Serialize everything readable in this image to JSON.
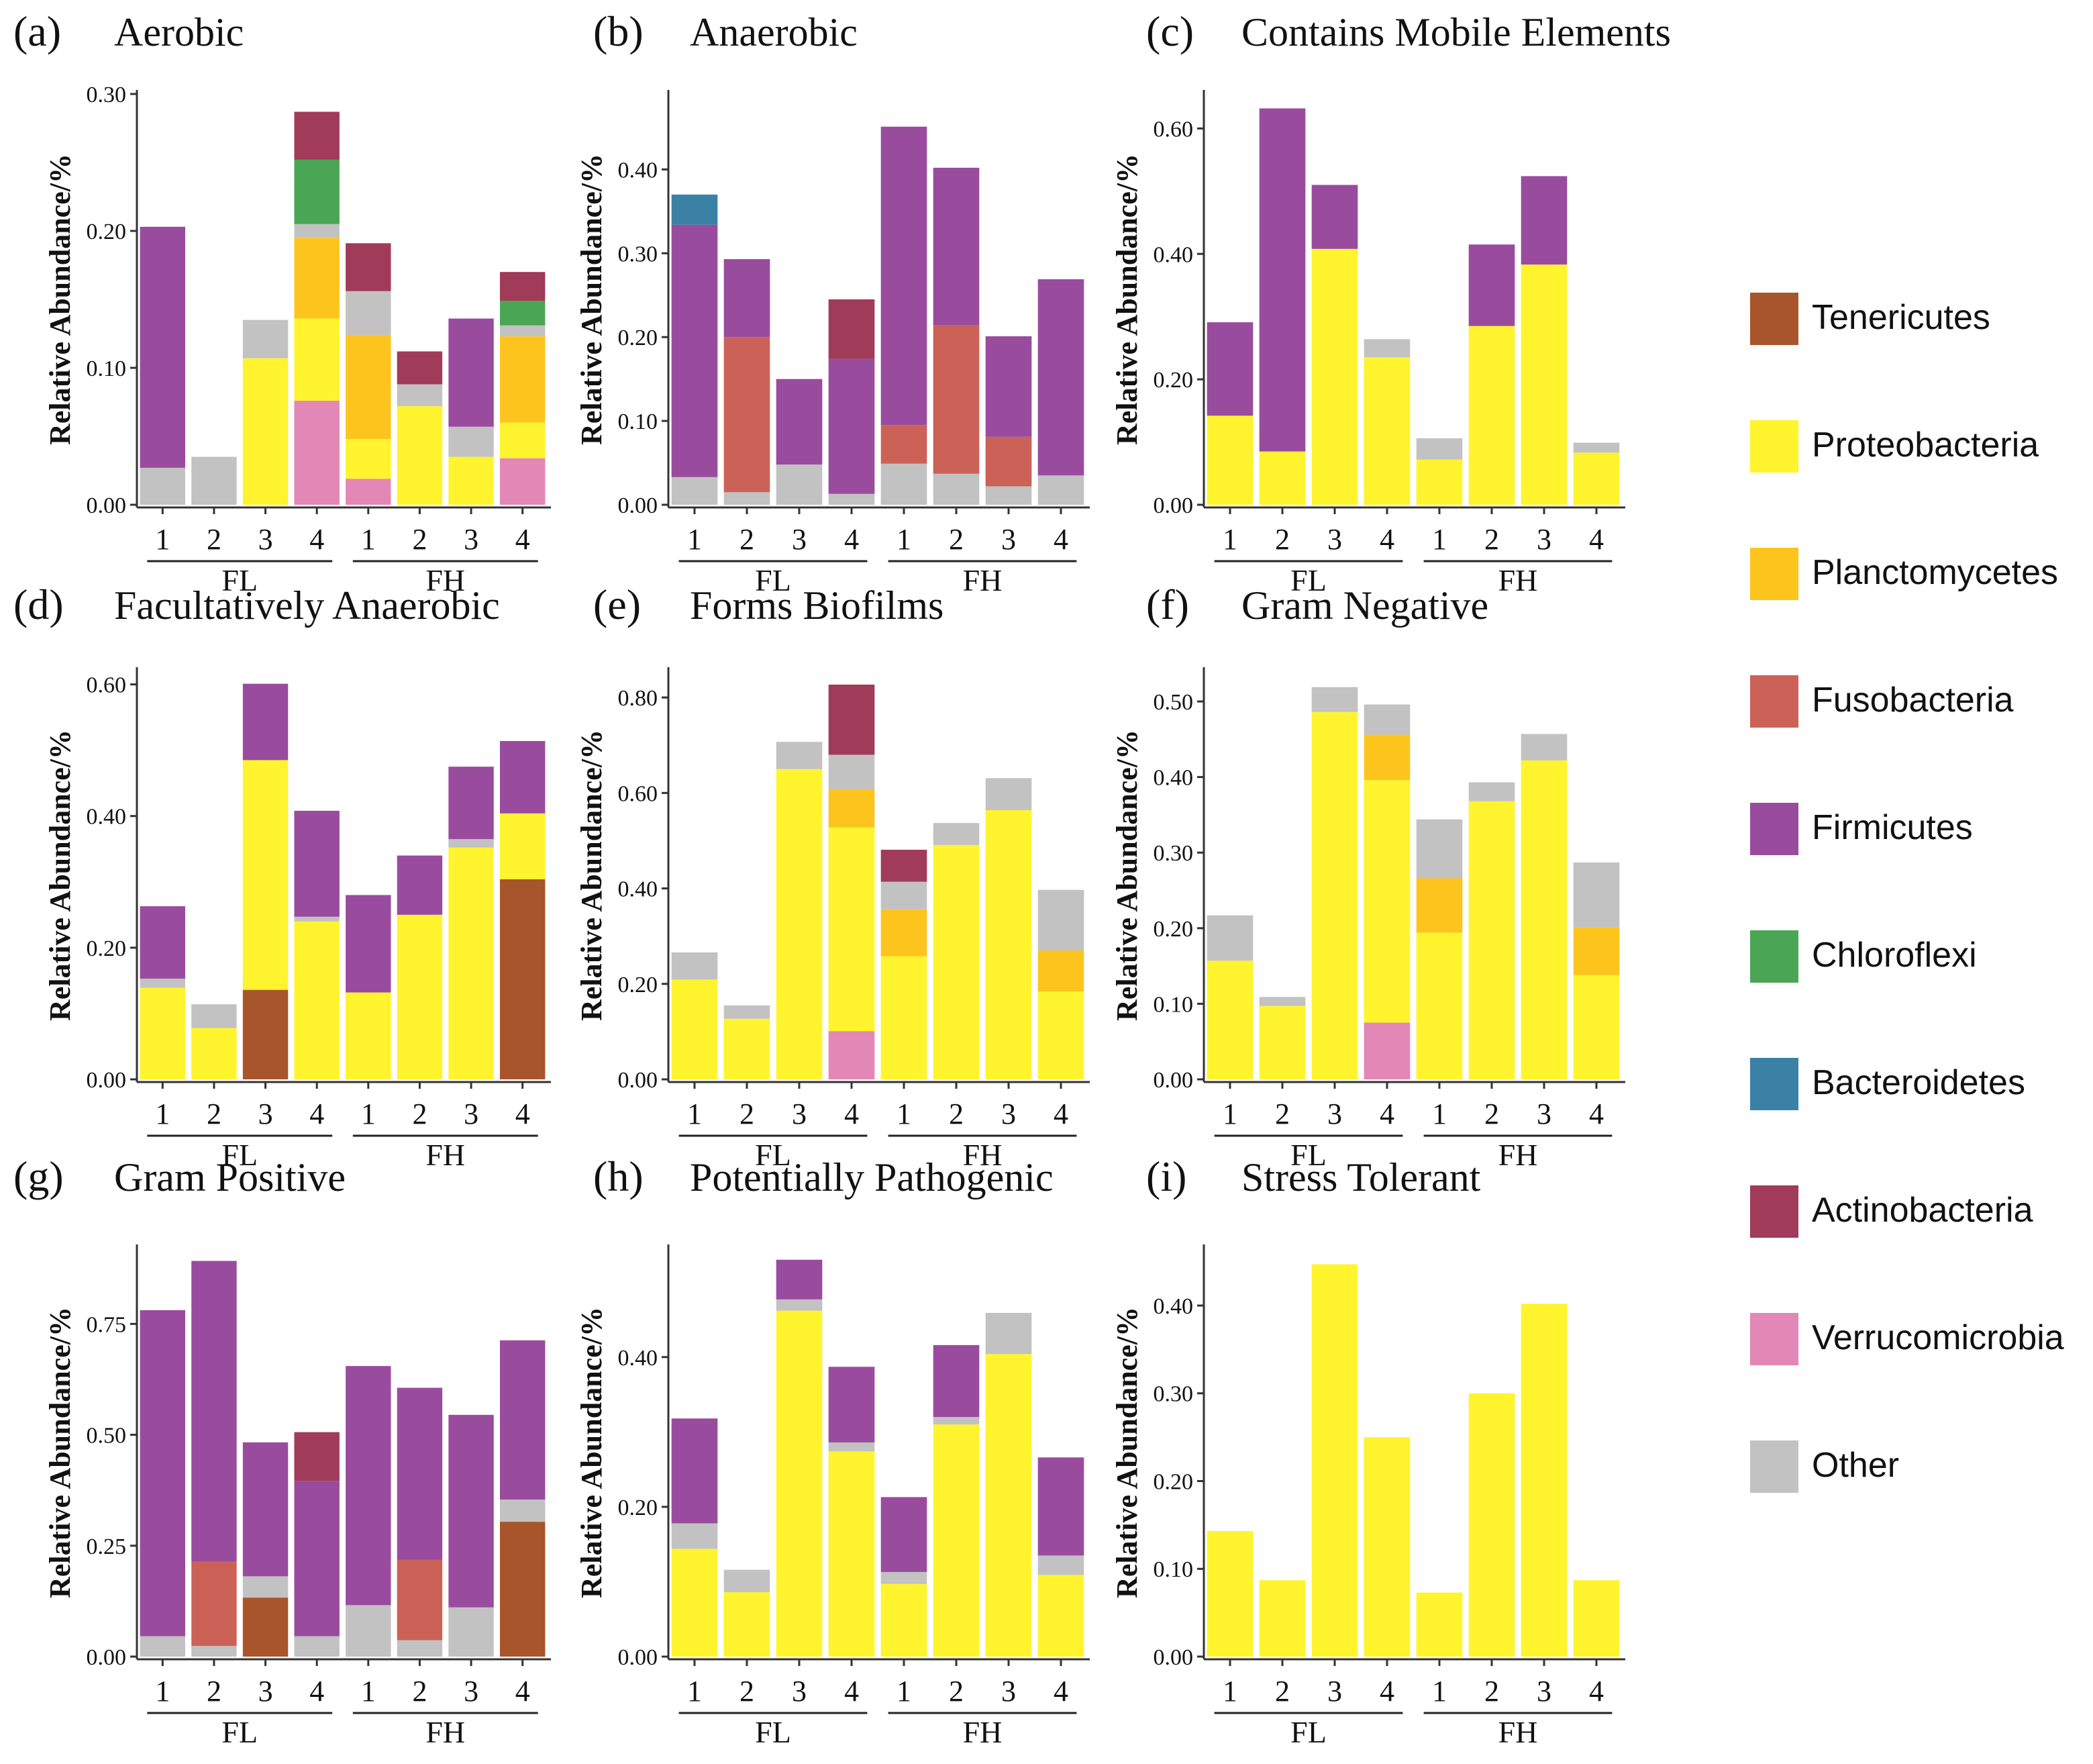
{
  "colors": {
    "Tenericutes": "#a8552b",
    "Proteobacteria": "#fff42d",
    "Planctomycetes": "#fec41e",
    "Fusobacteria": "#cc6257",
    "Firmicutes": "#994c9e",
    "Chloroflexi": "#4aa655",
    "Bacteroidetes": "#3a81a5",
    "Actinobacteria": "#a13b5a",
    "Verrucomicrobia": "#e287b6",
    "Other": "#c2c2c2"
  },
  "legend": {
    "items": [
      "Tenericutes",
      "Proteobacteria",
      "Planctomycetes",
      "Fusobacteria",
      "Firmicutes",
      "Chloroflexi",
      "Bacteroidetes",
      "Actinobacteria",
      "Verrucomicrobia",
      "Other"
    ]
  },
  "chart_data": [
    {
      "panel": "(a)",
      "title": "Aerobic",
      "type": "bar",
      "stacked": true,
      "ylabel": "Relative Abundance/%",
      "ylim": [
        0,
        0.3
      ],
      "yticks": [
        0,
        0.1,
        0.2,
        0.3
      ],
      "yticklabels": [
        "0.00",
        "0.10",
        "0.20",
        "0.30"
      ],
      "categories": [
        "1",
        "2",
        "3",
        "4",
        "1",
        "2",
        "3",
        "4"
      ],
      "groups": [
        "FL",
        "FH"
      ],
      "series": [
        {
          "name": "Other",
          "values": [
            0.027,
            0.035,
            0,
            0,
            0,
            0,
            0,
            0
          ]
        },
        {
          "name": "Verrucomicrobia",
          "values": [
            0,
            0,
            0,
            0.076,
            0.019,
            0,
            0,
            0.034
          ]
        },
        {
          "name": "Proteobacteria",
          "values": [
            0,
            0,
            0.107,
            0.06,
            0.029,
            0.072,
            0.035,
            0.026
          ]
        },
        {
          "name": "Planctomycetes",
          "values": [
            0,
            0,
            0,
            0.059,
            0.076,
            0,
            0,
            0.063
          ]
        },
        {
          "name": "Other",
          "values": [
            0,
            0,
            0.028,
            0.01,
            0.032,
            0.016,
            0.022,
            0.008
          ]
        },
        {
          "name": "Firmicutes",
          "values": [
            0.176,
            0,
            0,
            0,
            0,
            0,
            0.079,
            0
          ]
        },
        {
          "name": "Chloroflexi",
          "values": [
            0,
            0,
            0,
            0.047,
            0,
            0,
            0,
            0.018
          ]
        },
        {
          "name": "Actinobacteria",
          "values": [
            0,
            0,
            0,
            0.035,
            0.035,
            0.024,
            0,
            0.021
          ]
        }
      ]
    },
    {
      "panel": "(b)",
      "title": "Anaerobic",
      "type": "bar",
      "stacked": true,
      "ylabel": "Relative Abundance/%",
      "ylim": [
        0,
        0.49
      ],
      "yticks": [
        0,
        0.1,
        0.2,
        0.3,
        0.4
      ],
      "yticklabels": [
        "0.00",
        "0.10",
        "0.20",
        "0.30",
        "0.40"
      ],
      "categories": [
        "1",
        "2",
        "3",
        "4",
        "1",
        "2",
        "3",
        "4"
      ],
      "groups": [
        "FL",
        "FH"
      ],
      "series": [
        {
          "name": "Other",
          "values": [
            0.033,
            0.015,
            0.048,
            0.013,
            0.049,
            0.037,
            0.022,
            0.035
          ]
        },
        {
          "name": "Fusobacteria",
          "values": [
            0,
            0.185,
            0,
            0,
            0.046,
            0.177,
            0.059,
            0
          ]
        },
        {
          "name": "Firmicutes",
          "values": [
            0.301,
            0.093,
            0.102,
            0.161,
            0.356,
            0.188,
            0.12,
            0.234
          ]
        },
        {
          "name": "Actinobacteria",
          "values": [
            0,
            0,
            0,
            0.071,
            0,
            0,
            0,
            0
          ]
        },
        {
          "name": "Bacteroidetes",
          "values": [
            0.036,
            0,
            0,
            0,
            0,
            0,
            0,
            0
          ]
        }
      ]
    },
    {
      "panel": "(c)",
      "title": "Contains Mobile Elements",
      "type": "bar",
      "stacked": true,
      "ylabel": "Relative Abundance/%",
      "ylim": [
        0,
        0.655
      ],
      "yticks": [
        0,
        0.2,
        0.4,
        0.6
      ],
      "yticklabels": [
        "0.00",
        "0.20",
        "0.40",
        "0.60"
      ],
      "categories": [
        "1",
        "2",
        "3",
        "4",
        "1",
        "2",
        "3",
        "4"
      ],
      "groups": [
        "FL",
        "FH"
      ],
      "series": [
        {
          "name": "Proteobacteria",
          "values": [
            0.142,
            0.085,
            0.408,
            0.235,
            0.072,
            0.285,
            0.383,
            0.083
          ]
        },
        {
          "name": "Other",
          "values": [
            0,
            0,
            0,
            0.029,
            0.034,
            0,
            0,
            0.016
          ]
        },
        {
          "name": "Firmicutes",
          "values": [
            0.149,
            0.547,
            0.102,
            0,
            0,
            0.13,
            0.141,
            0
          ]
        }
      ]
    },
    {
      "panel": "(d)",
      "title": "Facultatively Anaerobic",
      "type": "bar",
      "stacked": true,
      "ylabel": "Relative Abundance/%",
      "ylim": [
        0,
        0.62
      ],
      "yticks": [
        0,
        0.2,
        0.4,
        0.6
      ],
      "yticklabels": [
        "0.00",
        "0.20",
        "0.40",
        "0.60"
      ],
      "categories": [
        "1",
        "2",
        "3",
        "4",
        "1",
        "2",
        "3",
        "4"
      ],
      "groups": [
        "FL",
        "FH"
      ],
      "series": [
        {
          "name": "Tenericutes",
          "values": [
            0,
            0,
            0.136,
            0,
            0,
            0,
            0,
            0.304
          ]
        },
        {
          "name": "Proteobacteria",
          "values": [
            0.139,
            0.078,
            0.349,
            0.24,
            0.132,
            0.25,
            0.352,
            0.1
          ]
        },
        {
          "name": "Other",
          "values": [
            0.014,
            0.036,
            0,
            0.007,
            0,
            0,
            0.013,
            0
          ]
        },
        {
          "name": "Firmicutes",
          "values": [
            0.11,
            0,
            0.116,
            0.161,
            0.148,
            0.09,
            0.11,
            0.11
          ]
        }
      ]
    },
    {
      "panel": "(e)",
      "title": "Forms Biofilms",
      "type": "bar",
      "stacked": true,
      "ylabel": "Relative Abundance/%",
      "ylim": [
        0,
        0.855
      ],
      "yticks": [
        0,
        0.2,
        0.4,
        0.6,
        0.8
      ],
      "yticklabels": [
        "0.00",
        "0.20",
        "0.40",
        "0.60",
        "0.80"
      ],
      "categories": [
        "1",
        "2",
        "3",
        "4",
        "1",
        "2",
        "3",
        "4"
      ],
      "groups": [
        "FL",
        "FH"
      ],
      "series": [
        {
          "name": "Verrucomicrobia",
          "values": [
            0,
            0,
            0,
            0.101,
            0,
            0,
            0,
            0
          ]
        },
        {
          "name": "Proteobacteria",
          "values": [
            0.209,
            0.127,
            0.65,
            0.427,
            0.258,
            0.491,
            0.564,
            0.184
          ]
        },
        {
          "name": "Planctomycetes",
          "values": [
            0,
            0,
            0,
            0.08,
            0.098,
            0,
            0,
            0.086
          ]
        },
        {
          "name": "Other",
          "values": [
            0.057,
            0.028,
            0.057,
            0.072,
            0.058,
            0.046,
            0.067,
            0.127
          ]
        },
        {
          "name": "Actinobacteria",
          "values": [
            0,
            0,
            0,
            0.147,
            0.067,
            0,
            0,
            0
          ]
        }
      ]
    },
    {
      "panel": "(f)",
      "title": "Gram Negative",
      "type": "bar",
      "stacked": true,
      "ylabel": "Relative Abundance/%",
      "ylim": [
        0,
        0.54
      ],
      "yticks": [
        0,
        0.1,
        0.2,
        0.3,
        0.4,
        0.5
      ],
      "yticklabels": [
        "0.00",
        "0.10",
        "0.20",
        "0.30",
        "0.40",
        "0.50"
      ],
      "categories": [
        "1",
        "2",
        "3",
        "4",
        "1",
        "2",
        "3",
        "4"
      ],
      "groups": [
        "FL",
        "FH"
      ],
      "series": [
        {
          "name": "Verrucomicrobia",
          "values": [
            0,
            0,
            0,
            0.075,
            0,
            0,
            0,
            0
          ]
        },
        {
          "name": "Proteobacteria",
          "values": [
            0.157,
            0.097,
            0.486,
            0.321,
            0.194,
            0.368,
            0.422,
            0.138
          ]
        },
        {
          "name": "Planctomycetes",
          "values": [
            0,
            0,
            0,
            0.06,
            0.072,
            0,
            0,
            0.063
          ]
        },
        {
          "name": "Other",
          "values": [
            0.06,
            0.012,
            0.033,
            0.04,
            0.078,
            0.025,
            0.035,
            0.086
          ]
        }
      ]
    },
    {
      "panel": "(g)",
      "title": "Gram Positive",
      "type": "bar",
      "stacked": true,
      "ylabel": "Relative Abundance/%",
      "ylim": [
        0,
        0.92
      ],
      "yticks": [
        0,
        0.25,
        0.5,
        0.75
      ],
      "yticklabels": [
        "0.00",
        "0.25",
        "0.50",
        "0.75"
      ],
      "categories": [
        "1",
        "2",
        "3",
        "4",
        "1",
        "2",
        "3",
        "4"
      ],
      "groups": [
        "FL",
        "FH"
      ],
      "series": [
        {
          "name": "Other",
          "values": [
            0.046,
            0.024,
            0,
            0.046,
            0.116,
            0.037,
            0.111,
            0
          ]
        },
        {
          "name": "Tenericutes",
          "values": [
            0,
            0,
            0.133,
            0,
            0,
            0,
            0,
            0.304
          ]
        },
        {
          "name": "Fusobacteria",
          "values": [
            0,
            0.19,
            0,
            0,
            0,
            0.181,
            0,
            0
          ]
        },
        {
          "name": "Other",
          "values": [
            0,
            0,
            0.048,
            0,
            0,
            0,
            0,
            0.05
          ]
        },
        {
          "name": "Firmicutes",
          "values": [
            0.735,
            0.678,
            0.302,
            0.35,
            0.539,
            0.388,
            0.434,
            0.359
          ]
        },
        {
          "name": "Actinobacteria",
          "values": [
            0,
            0,
            0,
            0.11,
            0,
            0,
            0,
            0
          ]
        }
      ]
    },
    {
      "panel": "(h)",
      "title": "Potentially Pathogenic",
      "type": "bar",
      "stacked": true,
      "ylabel": "Relative Abundance/%",
      "ylim": [
        0,
        0.545
      ],
      "yticks": [
        0,
        0.2,
        0.4
      ],
      "yticklabels": [
        "0.00",
        "0.20",
        "0.40"
      ],
      "categories": [
        "1",
        "2",
        "3",
        "4",
        "1",
        "2",
        "3",
        "4"
      ],
      "groups": [
        "FL",
        "FH"
      ],
      "series": [
        {
          "name": "Proteobacteria",
          "values": [
            0.144,
            0.086,
            0.462,
            0.274,
            0.097,
            0.31,
            0.404,
            0.109
          ]
        },
        {
          "name": "Other",
          "values": [
            0.034,
            0.03,
            0.015,
            0.012,
            0.016,
            0.01,
            0.055,
            0.026
          ]
        },
        {
          "name": "Firmicutes",
          "values": [
            0.14,
            0,
            0.053,
            0.101,
            0.1,
            0.096,
            0,
            0.131
          ]
        }
      ]
    },
    {
      "panel": "(i)",
      "title": "Stress Tolerant",
      "type": "bar",
      "stacked": true,
      "ylabel": "Relative Abundance/%",
      "ylim": [
        0,
        0.465
      ],
      "yticks": [
        0,
        0.1,
        0.2,
        0.3,
        0.4
      ],
      "yticklabels": [
        "0.00",
        "0.10",
        "0.20",
        "0.30",
        "0.40"
      ],
      "categories": [
        "1",
        "2",
        "3",
        "4",
        "1",
        "2",
        "3",
        "4"
      ],
      "groups": [
        "FL",
        "FH"
      ],
      "series": [
        {
          "name": "Proteobacteria",
          "values": [
            0.143,
            0.087,
            0.447,
            0.25,
            0.073,
            0.3,
            0.402,
            0.087
          ]
        }
      ]
    }
  ]
}
